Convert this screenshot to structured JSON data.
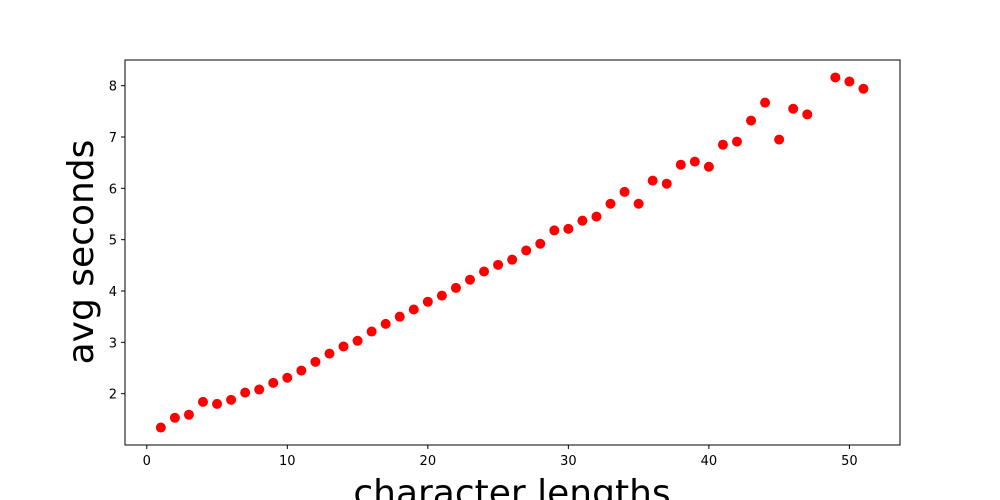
{
  "chart_data": {
    "type": "scatter",
    "x_label": "character lengths",
    "y_label": "avg seconds",
    "x": [
      1,
      2,
      3,
      4,
      5,
      6,
      7,
      8,
      9,
      10,
      11,
      12,
      13,
      14,
      15,
      16,
      17,
      18,
      19,
      20,
      21,
      22,
      23,
      24,
      25,
      26,
      27,
      28,
      29,
      30,
      31,
      32,
      33,
      34,
      35,
      36,
      37,
      38,
      39,
      40,
      41,
      42,
      43,
      44,
      45,
      46,
      47,
      49,
      50,
      51
    ],
    "values": [
      1.34,
      1.53,
      1.59,
      1.84,
      1.8,
      1.88,
      2.02,
      2.08,
      2.21,
      2.31,
      2.45,
      2.62,
      2.78,
      2.92,
      3.03,
      3.21,
      3.36,
      3.5,
      3.64,
      3.79,
      3.91,
      4.06,
      4.22,
      4.38,
      4.51,
      4.61,
      4.79,
      4.92,
      5.18,
      5.21,
      5.37,
      5.45,
      5.7,
      5.93,
      5.7,
      6.15,
      6.09,
      6.46,
      6.52,
      6.42,
      6.85,
      6.91,
      7.32,
      7.67,
      6.95,
      7.55,
      7.44,
      8.16,
      8.08,
      7.94
    ],
    "color": "#ff0000",
    "xlim": [
      -1.55,
      53.6
    ],
    "ylim": [
      1.0,
      8.5
    ],
    "xticks": [
      0,
      10,
      20,
      30,
      40,
      50
    ],
    "yticks": [
      2,
      3,
      4,
      5,
      6,
      7,
      8
    ],
    "grid": false
  }
}
